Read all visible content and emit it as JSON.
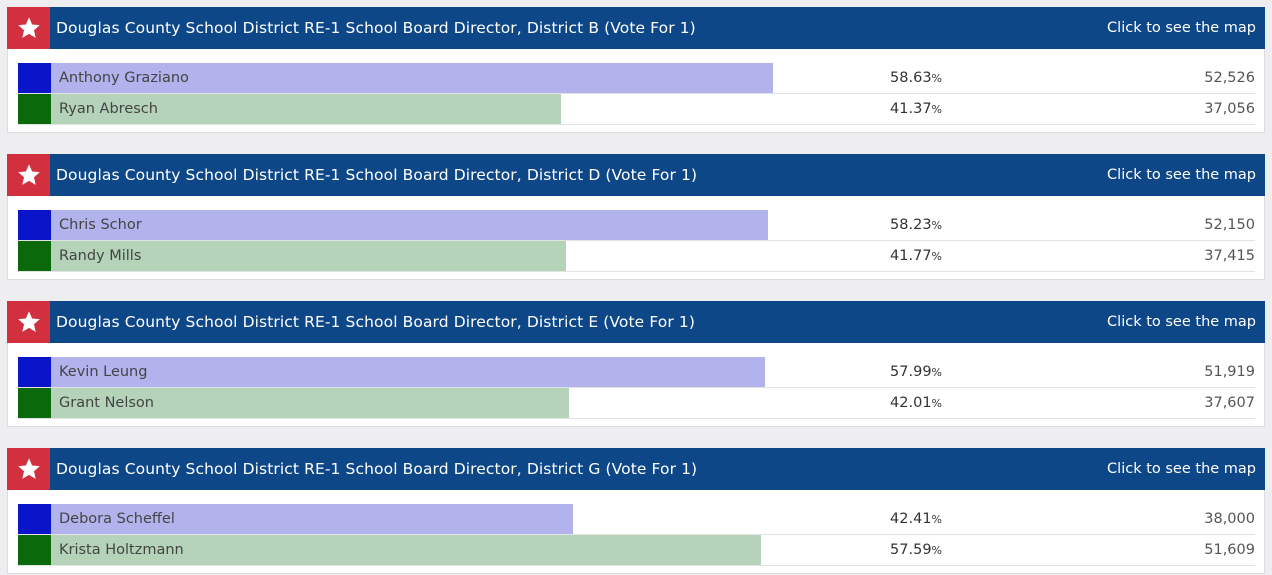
{
  "map_link_label": "Click to see the map",
  "colors": {
    "header_bg": "#0e4787",
    "star_bg": "#d2303f",
    "swatch_1": "#0a14c8",
    "swatch_2": "#0a690a",
    "bar_1": "#b2b2ec",
    "bar_2": "#b4d3b8"
  },
  "races": [
    {
      "title": "Douglas County School District RE-1 School Board Director, District B (Vote For 1)",
      "candidates": [
        {
          "name": "Anthony Graziano",
          "percent": "58.63",
          "votes": "52,526",
          "share": 0.5863
        },
        {
          "name": "Ryan Abresch",
          "percent": "41.37",
          "votes": "37,056",
          "share": 0.4137
        }
      ]
    },
    {
      "title": "Douglas County School District RE-1 School Board Director, District D (Vote For 1)",
      "candidates": [
        {
          "name": "Chris Schor",
          "percent": "58.23",
          "votes": "52,150",
          "share": 0.5823
        },
        {
          "name": "Randy Mills",
          "percent": "41.77",
          "votes": "37,415",
          "share": 0.4177
        }
      ]
    },
    {
      "title": "Douglas County School District RE-1 School Board Director, District E (Vote For 1)",
      "candidates": [
        {
          "name": "Kevin Leung",
          "percent": "57.99",
          "votes": "51,919",
          "share": 0.5799
        },
        {
          "name": "Grant Nelson",
          "percent": "42.01",
          "votes": "37,607",
          "share": 0.4201
        }
      ]
    },
    {
      "title": "Douglas County School District RE-1 School Board Director, District G (Vote For 1)",
      "candidates": [
        {
          "name": "Debora Scheffel",
          "percent": "42.41",
          "votes": "38,000",
          "share": 0.4241
        },
        {
          "name": "Krista Holtzmann",
          "percent": "57.59",
          "votes": "51,609",
          "share": 0.5759
        }
      ]
    }
  ]
}
